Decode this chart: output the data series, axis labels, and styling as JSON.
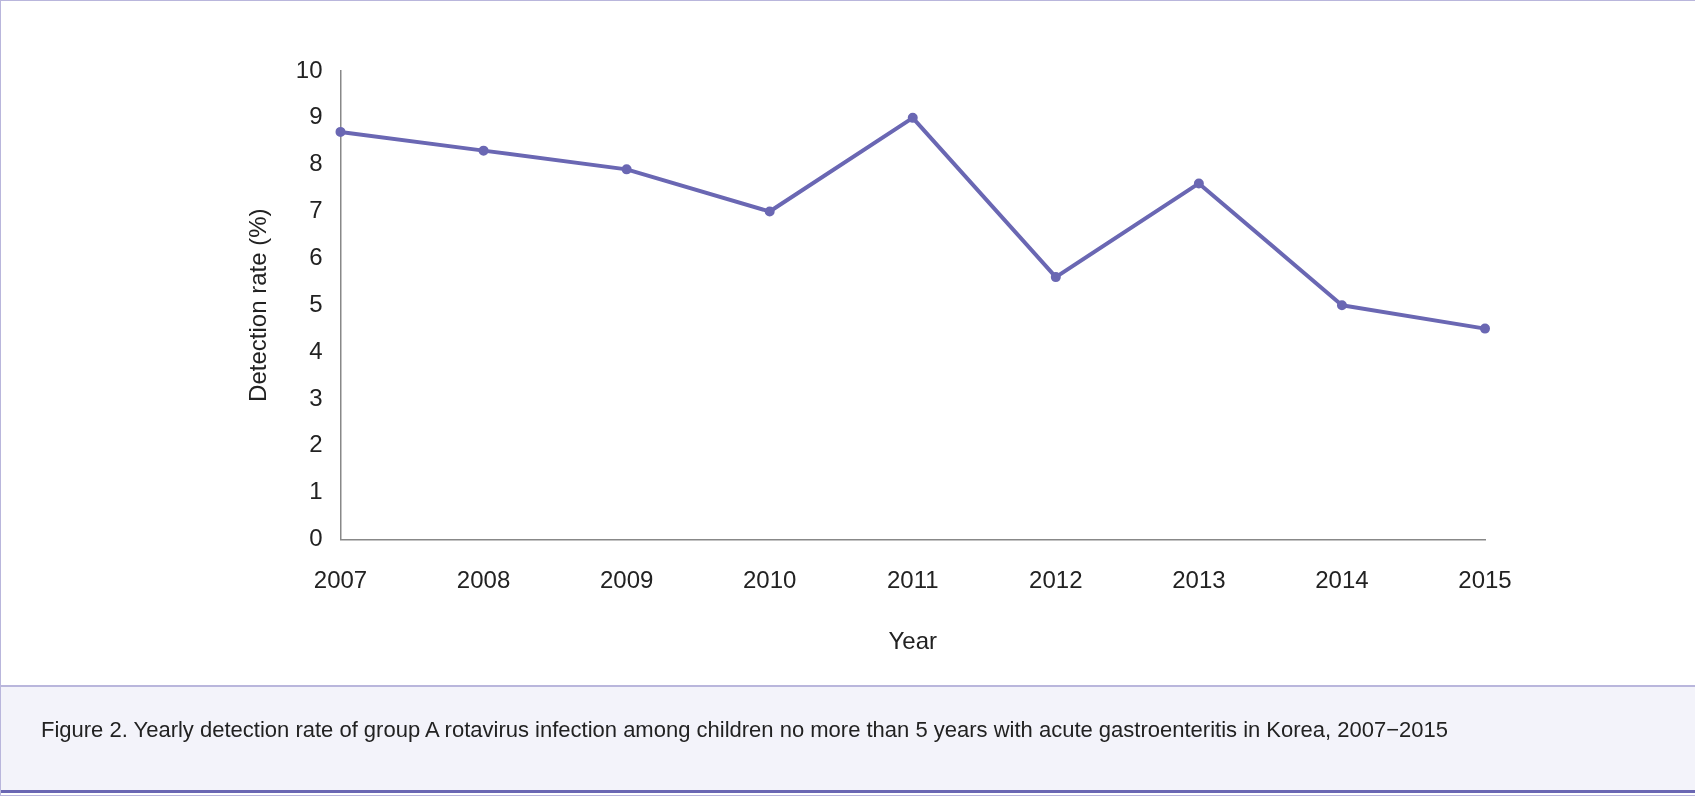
{
  "chart_data": {
    "type": "line",
    "xlabel": "Year",
    "ylabel": "Detection rate (%)",
    "categories": [
      "2007",
      "2008",
      "2009",
      "2010",
      "2011",
      "2012",
      "2013",
      "2014",
      "2015"
    ],
    "series": [
      {
        "color": "#6a67b3",
        "values": [
          8.7,
          8.3,
          7.9,
          7.0,
          9.0,
          5.6,
          7.6,
          5.0,
          4.5
        ]
      }
    ],
    "ylim": [
      0,
      10
    ],
    "yticks": [
      0,
      1,
      2,
      3,
      4,
      5,
      6,
      7,
      8,
      9,
      10
    ],
    "grid": false,
    "legend": false,
    "marker": "circle",
    "line_style": "solid",
    "annotations": [
      "Figure 2. Yearly detection rate of group A rotavirus infection among children no more than 5 years with acute gastroenteritis in Korea, 2007−2015"
    ]
  }
}
